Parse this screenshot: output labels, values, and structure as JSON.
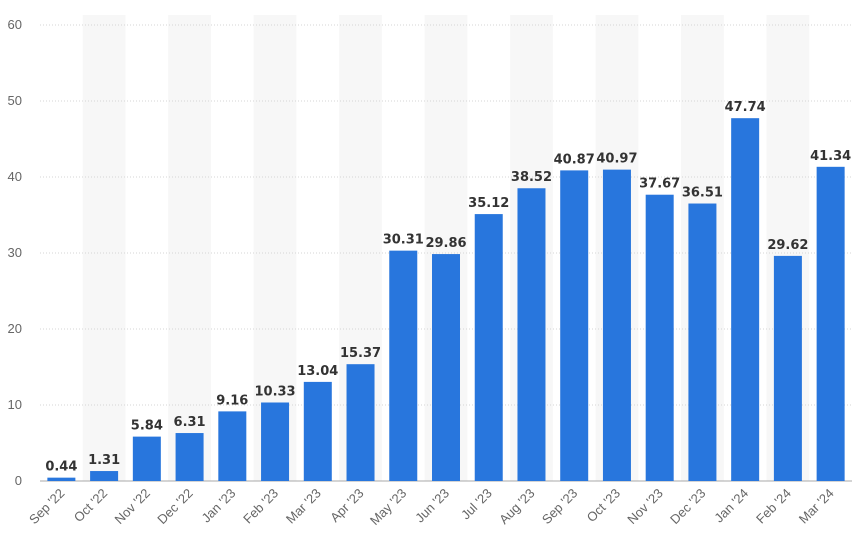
{
  "chart_data": {
    "type": "bar",
    "categories": [
      "Sep '22",
      "Oct '22",
      "Nov '22",
      "Dec '22",
      "Jan '23",
      "Feb '23",
      "Mar '23",
      "Apr '23",
      "May '23",
      "Jun '23",
      "Jul '23",
      "Aug '23",
      "Sep '23",
      "Oct '23",
      "Nov '23",
      "Dec '23",
      "Jan '24",
      "Feb '24",
      "Mar '24"
    ],
    "values": [
      0.44,
      1.31,
      5.84,
      6.31,
      9.16,
      10.33,
      13.04,
      15.37,
      30.31,
      29.86,
      35.12,
      38.52,
      40.87,
      40.97,
      37.67,
      36.51,
      47.74,
      29.62,
      41.34
    ],
    "value_labels": [
      "0.44",
      "1.31",
      "5.84",
      "6.31",
      "9.16",
      "10.33",
      "13.04",
      "15.37",
      "30.31",
      "29.86",
      "35.12",
      "38.52",
      "40.87",
      "40.97",
      "37.67",
      "36.51",
      "47.74",
      "29.62",
      "41.34"
    ],
    "ylim": [
      0,
      60
    ],
    "yticks": [
      0,
      10,
      20,
      30,
      40,
      50,
      60
    ],
    "ytick_labels": [
      "0",
      "10",
      "20",
      "30",
      "40",
      "50",
      "60"
    ],
    "title": "",
    "xlabel": "",
    "ylabel": "",
    "grid": true,
    "legend": "none",
    "colors": {
      "bar": "#2876dd",
      "band": "#f7f7f7",
      "grid": "#d6d6d6",
      "axis": "#a8a8a8",
      "tick_text": "#666666",
      "label_text": "#333333"
    }
  }
}
